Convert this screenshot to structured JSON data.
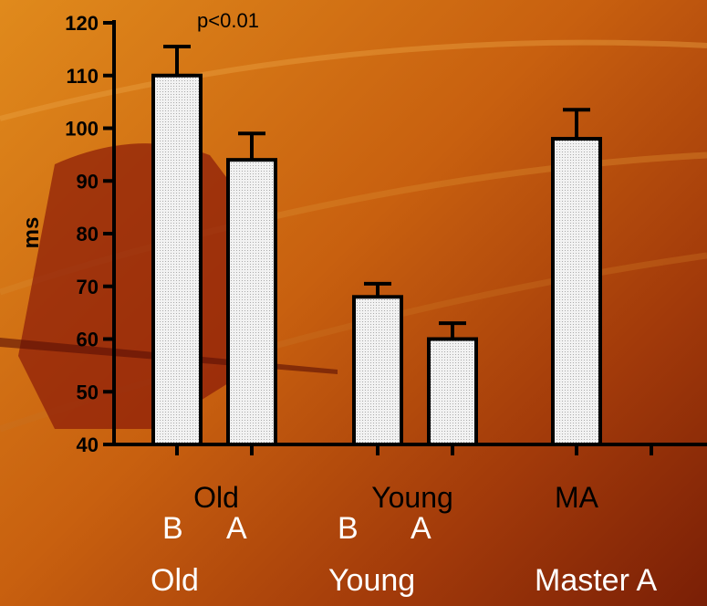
{
  "chart_data": {
    "type": "bar",
    "ylabel": "ms",
    "ylim": [
      40,
      120
    ],
    "yticks": [
      40,
      50,
      60,
      70,
      80,
      90,
      100,
      110,
      120
    ],
    "annotation": "p<0.01",
    "groups": [
      "Old",
      "Young",
      "MA"
    ],
    "bars": [
      {
        "group": "Old",
        "value": 110,
        "error": 5.5
      },
      {
        "group": "Old",
        "value": 94,
        "error": 5
      },
      {
        "group": "Young",
        "value": 68,
        "error": 2.5
      },
      {
        "group": "Young",
        "value": 60,
        "error": 3
      },
      {
        "group": "MA",
        "value": 98,
        "error": 5.5
      }
    ],
    "colors": {
      "bar_fill": "#f2f2f2",
      "bar_stroke": "#000000"
    }
  },
  "sublabels": {
    "old_b": "B",
    "old_a": "A",
    "young_b": "B",
    "young_a": "A",
    "old": "Old",
    "young": "Young",
    "master": "Master A"
  }
}
